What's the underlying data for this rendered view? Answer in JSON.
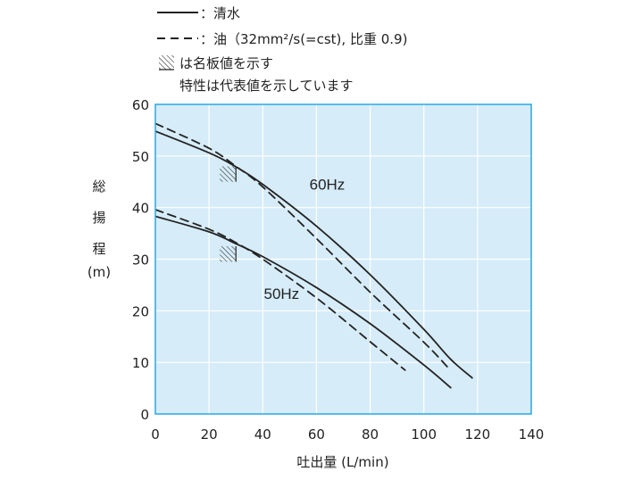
{
  "legend": {
    "solid_label": "：清水",
    "dashed_label": "：油（32mm²/s(=cst), 比重 0.9)",
    "hatch_label": "は名板値を示す",
    "note": "特性は代表値を示しています"
  },
  "colors": {
    "plot_bg": "#d6ecf8",
    "plot_border": "#29a8e0",
    "grid": "#ffffff",
    "line": "#222222"
  },
  "chart_data": {
    "type": "line",
    "xlabel": "吐出量 (L/min)",
    "ylabel_chars": [
      "総",
      "揚",
      "程",
      "(m)"
    ],
    "xlim": [
      0,
      140
    ],
    "ylim": [
      0,
      60
    ],
    "x_ticks": [
      0,
      20,
      40,
      60,
      80,
      100,
      120,
      140
    ],
    "y_ticks": [
      0,
      10,
      20,
      30,
      40,
      50,
      60
    ],
    "grid": true,
    "series": [
      {
        "name": "60Hz",
        "style": "solid",
        "x": [
          0,
          20,
          30,
          40,
          60,
          80,
          100,
          110,
          118
        ],
        "y": [
          54.8,
          50.6,
          47.9,
          44.5,
          36.4,
          27.0,
          16.4,
          10.6,
          7.0
        ]
      },
      {
        "name": "60Hz",
        "style": "dashed",
        "x": [
          0,
          20,
          30,
          40,
          60,
          80,
          100,
          109
        ],
        "y": [
          56.3,
          51.5,
          48.0,
          44.0,
          34.0,
          23.6,
          13.9,
          9.0
        ]
      },
      {
        "name": "50Hz",
        "style": "solid",
        "x": [
          0,
          20,
          30,
          40,
          60,
          80,
          100,
          110
        ],
        "y": [
          38.3,
          35.3,
          33.0,
          30.5,
          24.5,
          17.5,
          9.5,
          5.1
        ]
      },
      {
        "name": "50Hz",
        "style": "dashed",
        "x": [
          0,
          20,
          30,
          40,
          60,
          80,
          93
        ],
        "y": [
          39.6,
          35.8,
          33.2,
          30.0,
          22.5,
          14.0,
          8.5
        ]
      }
    ],
    "series_labels": [
      {
        "text": "60Hz",
        "x": 64,
        "y": 43.5
      },
      {
        "text": "50Hz",
        "x": 47,
        "y": 22.3
      }
    ],
    "rated_points": [
      {
        "x": 30,
        "y": 48.0
      },
      {
        "x": 30,
        "y": 32.5
      }
    ]
  }
}
